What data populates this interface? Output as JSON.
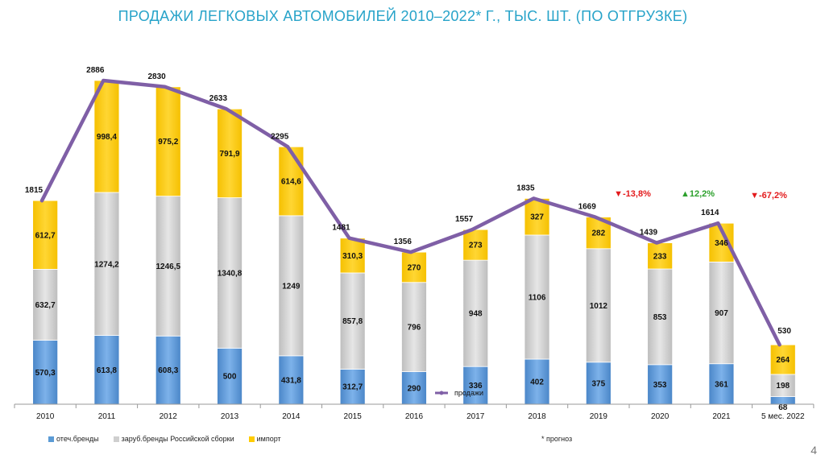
{
  "title": "ПРОДАЖИ  ЛЕГКОВЫХ АВТОМОБИЛЕЙ 2010–2022* Г., ТЫС. ШТ. (ПО ОТГРУЗКЕ)",
  "forecast_note": "* прогноз",
  "page_number": "4",
  "colors": {
    "domestic": "#5b9bd5",
    "foreign_local": "#d0d0d0",
    "import": "#ffcc00",
    "sales_line": "#7f5fa6",
    "up": "#2ca02c",
    "down": "#e31a1c"
  },
  "chart_data": {
    "type": "bar",
    "stacked": true,
    "categories": [
      "2010",
      "2011",
      "2012",
      "2013",
      "2014",
      "2015",
      "2016",
      "2017",
      "2018",
      "2019",
      "2020",
      "2021",
      "5 мес. 2022"
    ],
    "series": [
      {
        "name": "отеч.бренды",
        "values": [
          570.3,
          613.8,
          608.3,
          500,
          431.8,
          312.7,
          290,
          336,
          402,
          375,
          353,
          361,
          68
        ],
        "labels": [
          "570,3",
          "613,8",
          "608,3",
          "500",
          "431,8",
          "312,7",
          "290",
          "336",
          "402",
          "375",
          "353",
          "361",
          "68"
        ]
      },
      {
        "name": "заруб.бренды Российской сборки",
        "values": [
          632.7,
          1274.2,
          1246.5,
          1340.8,
          1249,
          857.8,
          796,
          948,
          1106,
          1012,
          853,
          907,
          198
        ],
        "labels": [
          "632,7",
          "1274,2",
          "1246,5",
          "1340,8",
          "1249",
          "857,8",
          "796",
          "948",
          "1106",
          "1012",
          "853",
          "907",
          "198"
        ]
      },
      {
        "name": "импорт",
        "values": [
          612.7,
          998.4,
          975.2,
          791.9,
          614.6,
          310.3,
          270,
          273,
          327,
          282,
          233,
          346,
          264
        ],
        "labels": [
          "612,7",
          "998,4",
          "975,2",
          "791,9",
          "614,6",
          "310,3",
          "270",
          "273",
          "327",
          "282",
          "233",
          "346",
          "264"
        ]
      }
    ],
    "line": {
      "name": "продажи",
      "values": [
        1815,
        2886,
        2830,
        2633,
        2295,
        1481,
        1356,
        1557,
        1835,
        1669,
        1439,
        1614,
        530
      ],
      "labels": [
        "1815",
        "2886",
        "2830",
        "2633",
        "2295",
        "1481",
        "1356",
        "1557",
        "1835",
        "1669",
        "1439",
        "1614",
        "530"
      ]
    },
    "annotations": [
      {
        "category": "2019",
        "text": "-13,8%",
        "direction": "down"
      },
      {
        "category": "2021",
        "text": "12,2%",
        "direction": "up"
      },
      {
        "category": "5 мес. 2022",
        "text": "-67,2%",
        "direction": "down"
      }
    ],
    "ylim": [
      0,
      3000
    ],
    "legend_position": "bottom-left"
  }
}
